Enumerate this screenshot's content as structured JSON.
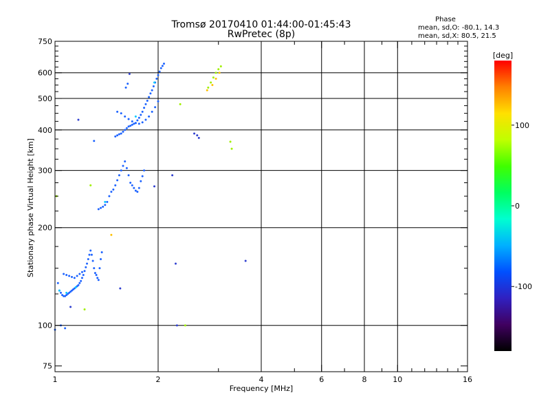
{
  "header": {
    "title": "Tromsø 20170410 01:44:00-01:45:43",
    "subtitle": "RwPretec (8p)"
  },
  "phase_stats": {
    "heading": "Phase",
    "line_o": "mean, sd,O: -80.1, 14.3",
    "line_x": "mean, sd,X:  80.5, 21.5"
  },
  "colorbar": {
    "label": "[deg]",
    "range": [
      -180,
      180
    ],
    "ticks": [
      {
        "value": 100,
        "label": "100"
      },
      {
        "value": 0,
        "label": "0"
      },
      {
        "value": -100,
        "label": "-100"
      }
    ],
    "colors": [
      "#000000",
      "#400060",
      "#3020c0",
      "#0050ff",
      "#00b0ff",
      "#00ffd0",
      "#00ff60",
      "#40ff00",
      "#c0ff00",
      "#ffe000",
      "#ff8000",
      "#ff0000"
    ]
  },
  "chart_data": {
    "type": "scatter",
    "xlabel": "Frequency [MHz]",
    "ylabel": "Stationary phase Virtual Height [km]",
    "xscale": "log",
    "yscale": "log",
    "xlim": [
      1,
      16
    ],
    "ylim": [
      72,
      750
    ],
    "x_ticks": [
      {
        "value": 1,
        "label": "1"
      },
      {
        "value": 2,
        "label": "2"
      },
      {
        "value": 4,
        "label": "4"
      },
      {
        "value": 6,
        "label": "6"
      },
      {
        "value": 8,
        "label": "8"
      },
      {
        "value": 10,
        "label": "10"
      },
      {
        "value": 16,
        "label": "16"
      }
    ],
    "x_minor_ticks": [
      3,
      5,
      7,
      9,
      11,
      12,
      13,
      14,
      15
    ],
    "x_gridlines": [
      2,
      4,
      6,
      8,
      10
    ],
    "y_ticks": [
      {
        "value": 75,
        "label": "75"
      },
      {
        "value": 100,
        "label": "100"
      },
      {
        "value": 200,
        "label": "200"
      },
      {
        "value": 300,
        "label": "300"
      },
      {
        "value": 400,
        "label": "400"
      },
      {
        "value": 500,
        "label": "500"
      },
      {
        "value": 600,
        "label": "600"
      },
      {
        "value": 750,
        "label": "750"
      }
    ],
    "y_minor_ticks": [
      125,
      150,
      175,
      225,
      250,
      275,
      325,
      350,
      375,
      425,
      450,
      475,
      525,
      550,
      575,
      625,
      650,
      675,
      700,
      725
    ],
    "y_gridlines": [
      100,
      200,
      300,
      400,
      500,
      600
    ],
    "series": [
      {
        "color": "#1e64ff",
        "points": [
          [
            1.02,
            135
          ],
          [
            1.03,
            128
          ],
          [
            1.04,
            126
          ],
          [
            1.05,
            124
          ],
          [
            1.06,
            123
          ],
          [
            1.07,
            123
          ],
          [
            1.08,
            124
          ],
          [
            1.09,
            125
          ],
          [
            1.1,
            126
          ],
          [
            1.11,
            127
          ],
          [
            1.12,
            128
          ],
          [
            1.13,
            129
          ],
          [
            1.14,
            130
          ],
          [
            1.15,
            131
          ],
          [
            1.16,
            132
          ],
          [
            1.17,
            133
          ],
          [
            1.18,
            135
          ],
          [
            1.19,
            137
          ],
          [
            1.2,
            140
          ],
          [
            1.21,
            143
          ],
          [
            1.22,
            147
          ],
          [
            1.23,
            151
          ],
          [
            1.24,
            155
          ],
          [
            1.25,
            160
          ],
          [
            1.26,
            165
          ],
          [
            1.27,
            170
          ],
          [
            1.28,
            165
          ],
          [
            1.29,
            158
          ],
          [
            1.3,
            150
          ],
          [
            1.31,
            145
          ],
          [
            1.32,
            143
          ],
          [
            1.33,
            140
          ],
          [
            1.34,
            138
          ],
          [
            1.35,
            150
          ],
          [
            1.36,
            160
          ],
          [
            1.37,
            168
          ],
          [
            1.06,
            144
          ],
          [
            1.08,
            143
          ],
          [
            1.1,
            142
          ],
          [
            1.12,
            141
          ],
          [
            1.14,
            140
          ],
          [
            1.16,
            142
          ],
          [
            1.18,
            144
          ],
          [
            1.2,
            146
          ],
          [
            1.34,
            228
          ],
          [
            1.36,
            230
          ],
          [
            1.38,
            232
          ],
          [
            1.4,
            235
          ],
          [
            1.42,
            240
          ],
          [
            1.44,
            250
          ],
          [
            1.46,
            258
          ],
          [
            1.48,
            262
          ],
          [
            1.5,
            270
          ],
          [
            1.52,
            280
          ],
          [
            1.54,
            290
          ],
          [
            1.56,
            300
          ],
          [
            1.58,
            310
          ],
          [
            1.6,
            320
          ],
          [
            1.62,
            305
          ],
          [
            1.64,
            290
          ],
          [
            1.66,
            275
          ],
          [
            1.68,
            270
          ],
          [
            1.7,
            265
          ],
          [
            1.72,
            260
          ],
          [
            1.74,
            258
          ],
          [
            1.76,
            265
          ],
          [
            1.78,
            278
          ],
          [
            1.8,
            288
          ],
          [
            1.82,
            300
          ],
          [
            1.5,
            382
          ],
          [
            1.52,
            385
          ],
          [
            1.54,
            388
          ],
          [
            1.56,
            390
          ],
          [
            1.58,
            395
          ],
          [
            1.6,
            400
          ],
          [
            1.62,
            405
          ],
          [
            1.64,
            410
          ],
          [
            1.66,
            412
          ],
          [
            1.68,
            415
          ],
          [
            1.7,
            418
          ],
          [
            1.72,
            420
          ],
          [
            1.74,
            428
          ],
          [
            1.76,
            436
          ],
          [
            1.78,
            445
          ],
          [
            1.8,
            455
          ],
          [
            1.82,
            468
          ],
          [
            1.84,
            480
          ],
          [
            1.86,
            492
          ],
          [
            1.88,
            505
          ],
          [
            1.9,
            518
          ],
          [
            1.92,
            530
          ],
          [
            1.94,
            545
          ],
          [
            1.96,
            560
          ],
          [
            1.98,
            575
          ],
          [
            2.0,
            590
          ],
          [
            2.02,
            605
          ],
          [
            2.04,
            620
          ],
          [
            2.06,
            630
          ],
          [
            2.08,
            640
          ],
          [
            1.52,
            455
          ],
          [
            1.56,
            450
          ],
          [
            1.6,
            440
          ],
          [
            1.64,
            432
          ],
          [
            1.68,
            425
          ],
          [
            1.72,
            420
          ],
          [
            1.76,
            418
          ],
          [
            1.8,
            422
          ],
          [
            1.84,
            430
          ],
          [
            1.88,
            440
          ],
          [
            1.92,
            455
          ],
          [
            1.96,
            470
          ],
          [
            2.0,
            490
          ],
          [
            1.0,
            97
          ],
          [
            1.04,
            100
          ],
          [
            1.07,
            98
          ],
          [
            1.3,
            370
          ],
          [
            1.61,
            540
          ],
          [
            1.63,
            555
          ]
        ]
      },
      {
        "color": "#3040d0",
        "points": [
          [
            1.11,
            114
          ],
          [
            1.17,
            430
          ],
          [
            1.55,
            130
          ],
          [
            1.65,
            595
          ],
          [
            1.95,
            268
          ],
          [
            2.2,
            290
          ],
          [
            2.25,
            155
          ],
          [
            2.27,
            100
          ],
          [
            2.55,
            390
          ],
          [
            2.6,
            385
          ],
          [
            2.63,
            378
          ],
          [
            3.6,
            158
          ]
        ]
      },
      {
        "color": "#00c8ff",
        "points": [
          [
            1.03,
            128
          ],
          [
            1.08,
            126
          ],
          [
            1.15,
            131
          ],
          [
            1.4,
            240
          ],
          [
            1.72,
            440
          ],
          [
            1.95,
            560
          ]
        ]
      },
      {
        "color": "#a0f000",
        "points": [
          [
            1.01,
            250
          ],
          [
            1.27,
            270
          ],
          [
            1.22,
            112
          ],
          [
            2.32,
            480
          ],
          [
            2.4,
            100
          ],
          [
            2.8,
            540
          ],
          [
            2.85,
            560
          ],
          [
            2.9,
            580
          ],
          [
            2.95,
            600
          ],
          [
            3.0,
            615
          ],
          [
            3.05,
            628
          ],
          [
            3.25,
            368
          ],
          [
            3.28,
            350
          ]
        ]
      },
      {
        "color": "#ffc000",
        "points": [
          [
            1.46,
            190
          ],
          [
            2.78,
            530
          ],
          [
            2.88,
            550
          ],
          [
            2.95,
            575
          ],
          [
            3.02,
            600
          ]
        ]
      }
    ]
  }
}
